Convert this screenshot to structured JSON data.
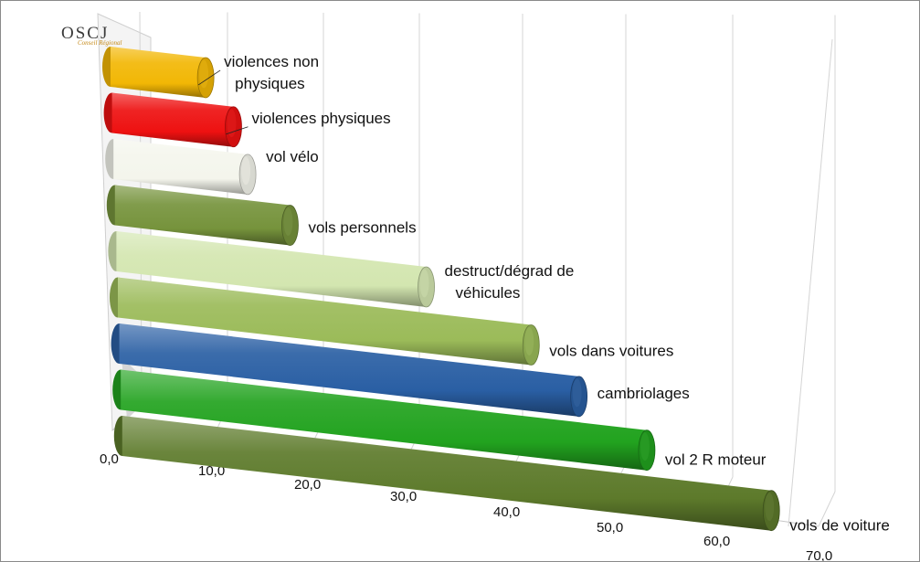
{
  "logo": {
    "text": "OSCJ",
    "subtitle": "Conseil Régional"
  },
  "chart_data": {
    "type": "bar",
    "orientation": "horizontal",
    "style": "3d-cylinder",
    "categories": [
      "violences non physiques",
      "violences physiques",
      "vol vélo",
      "vols personnels",
      "destruct/dégrad de véhicules",
      "vols dans voitures",
      "cambriolages",
      "vol 2 R moteur",
      "vols de voiture"
    ],
    "label_lines": [
      [
        "violences non",
        "physiques"
      ],
      [
        "violences physiques"
      ],
      [
        "vol vélo"
      ],
      [
        "vols personnels"
      ],
      [
        "destruct/dégrad de",
        "véhicules"
      ],
      [
        "vols dans voitures"
      ],
      [
        "cambriolages"
      ],
      [
        "vol 2 R moteur"
      ],
      [
        "vols de voiture"
      ]
    ],
    "values": [
      12.6,
      15.8,
      17.0,
      21.6,
      36.6,
      46.6,
      50.0,
      55.0,
      65.2
    ],
    "colors": [
      "#f2b705",
      "#ee1111",
      "#f4f5ec",
      "#76933c",
      "#d3e6b0",
      "#9bbb59",
      "#2a5fa4",
      "#22a31f",
      "#5d7a2b"
    ],
    "xlim": [
      0,
      70
    ],
    "x_ticks": [
      "0,0",
      "10,0",
      "20,0",
      "30,0",
      "40,0",
      "50,0",
      "60,0",
      "70,0"
    ],
    "grid": true,
    "legend": "none"
  }
}
